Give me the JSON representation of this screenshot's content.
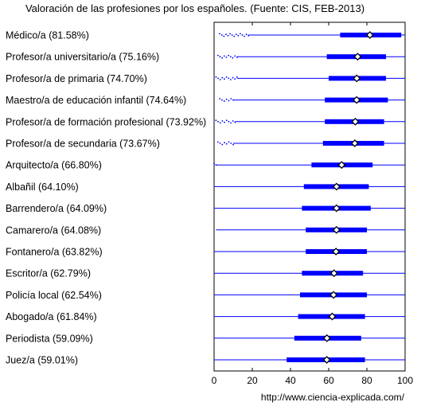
{
  "chart_data": {
    "type": "box",
    "title": "Valoración de las profesiones por los españoles. (Fuente: CIS, FEB-2013)",
    "source_url": "http://www.ciencia-explicada.com/",
    "xlim": [
      0,
      100
    ],
    "xticks": [
      "0",
      "20",
      "40",
      "60",
      "80",
      "100"
    ],
    "categories": [
      "Médico/a (81.58%)",
      "Profesor/a universitario/a (75.16%)",
      "Profesor/a de primaria (74.70%)",
      "Maestro/a de educación infantil (74.64%)",
      "Profesor/a de formación profesional (73.92%)",
      "Profesor/a de secundaria (73.67%)",
      "Arquitecto/a (66.80%)",
      "Albañil (64.10%)",
      "Barrendero/a (64.09%)",
      "Camarero/a (64.08%)",
      "Fontanero/a (63.82%)",
      "Escritor/a (62.79%)",
      "Policía local (62.54%)",
      "Abogado/a (61.84%)",
      "Periodista (59.09%)",
      "Juez/a (59.01%)"
    ],
    "values": [
      81.58,
      75.16,
      74.7,
      74.64,
      73.92,
      73.67,
      66.8,
      64.1,
      64.09,
      64.08,
      63.82,
      62.79,
      62.54,
      61.84,
      59.09,
      59.01
    ],
    "boxes": [
      {
        "whisker_low": 18,
        "q1": 66,
        "q3": 98,
        "whisker_high": 100
      },
      {
        "whisker_low": 12,
        "q1": 59,
        "q3": 90,
        "whisker_high": 100
      },
      {
        "whisker_low": 12,
        "q1": 60,
        "q3": 90,
        "whisker_high": 100
      },
      {
        "whisker_low": 10,
        "q1": 58,
        "q3": 91,
        "whisker_high": 100
      },
      {
        "whisker_low": 11,
        "q1": 58,
        "q3": 89,
        "whisker_high": 100
      },
      {
        "whisker_low": 10,
        "q1": 57,
        "q3": 89,
        "whisker_high": 100
      },
      {
        "whisker_low": 1,
        "q1": 51,
        "q3": 83,
        "whisker_high": 100
      },
      {
        "whisker_low": 0,
        "q1": 47,
        "q3": 81,
        "whisker_high": 100
      },
      {
        "whisker_low": 0,
        "q1": 46,
        "q3": 82,
        "whisker_high": 100
      },
      {
        "whisker_low": 1,
        "q1": 48,
        "q3": 80,
        "whisker_high": 100
      },
      {
        "whisker_low": 0,
        "q1": 48,
        "q3": 80,
        "whisker_high": 100
      },
      {
        "whisker_low": 0,
        "q1": 46,
        "q3": 78,
        "whisker_high": 100
      },
      {
        "whisker_low": 0,
        "q1": 45,
        "q3": 80,
        "whisker_high": 100
      },
      {
        "whisker_low": 0,
        "q1": 44,
        "q3": 79,
        "whisker_high": 100
      },
      {
        "whisker_low": 0,
        "q1": 42,
        "q3": 77,
        "whisker_high": 100
      },
      {
        "whisker_low": 0,
        "q1": 38,
        "q3": 79,
        "whisker_high": 100
      }
    ],
    "outlier_ranges": [
      [
        3,
        18
      ],
      [
        2,
        12
      ],
      [
        1,
        12
      ],
      [
        3,
        10
      ],
      [
        1,
        11
      ],
      [
        2,
        10
      ],
      [
        0,
        1
      ],
      [],
      [],
      [],
      [],
      [],
      [],
      [],
      [],
      []
    ],
    "colors": {
      "box": "#0000ff",
      "whisker": "#0000ff",
      "outlier": "#0000ff",
      "marker": "#000000"
    }
  }
}
